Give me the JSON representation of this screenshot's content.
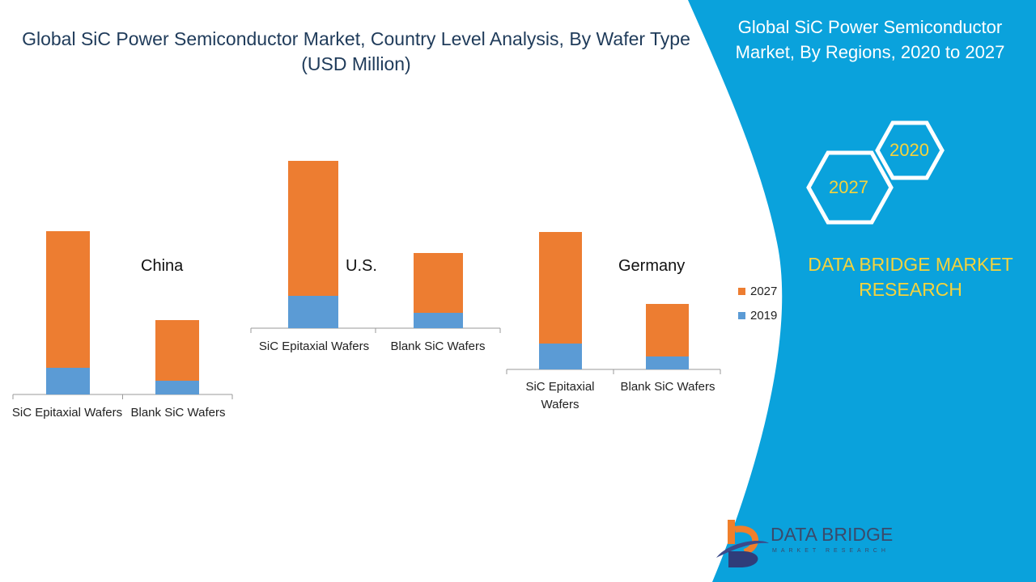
{
  "title": "Global SiC Power Semiconductor Market, Country Level Analysis, By Wafer Type (USD Million)",
  "side_panel": {
    "title": "Global SiC Power Semiconductor Market, By Regions, 2020 to 2027",
    "hexagons": [
      "2020",
      "2027"
    ],
    "brand": "DATA BRIDGE MARKET RESEARCH",
    "logo_text": "DATA BRIDGE",
    "logo_subtext": "MARKET RESEARCH",
    "color": "#0aa2dc",
    "accent": "#f5d33c"
  },
  "legend": [
    {
      "label": "2027",
      "color": "#ed7d31"
    },
    {
      "label": "2019",
      "color": "#5b9bd5"
    }
  ],
  "chart_data": [
    {
      "type": "bar",
      "stacked": true,
      "title": "China",
      "categories": [
        "SiC Epitaxial Wafers",
        "Blank SiC Wafers"
      ],
      "series": [
        {
          "name": "2019",
          "values": [
            33,
            17
          ]
        },
        {
          "name": "2027",
          "values": [
            169,
            75
          ]
        }
      ]
    },
    {
      "type": "bar",
      "stacked": true,
      "title": "U.S.",
      "categories": [
        "SiC Epitaxial Wafers",
        "Blank SiC Wafers"
      ],
      "series": [
        {
          "name": "2019",
          "values": [
            40,
            19
          ]
        },
        {
          "name": "2027",
          "values": [
            167,
            74
          ]
        }
      ]
    },
    {
      "type": "bar",
      "stacked": true,
      "title": "Germany",
      "categories": [
        "SiC Epitaxial\nWafers",
        "Blank SiC Wafers"
      ],
      "series": [
        {
          "name": "2019",
          "values": [
            32,
            16
          ]
        },
        {
          "name": "2027",
          "values": [
            138,
            65
          ]
        }
      ]
    }
  ]
}
